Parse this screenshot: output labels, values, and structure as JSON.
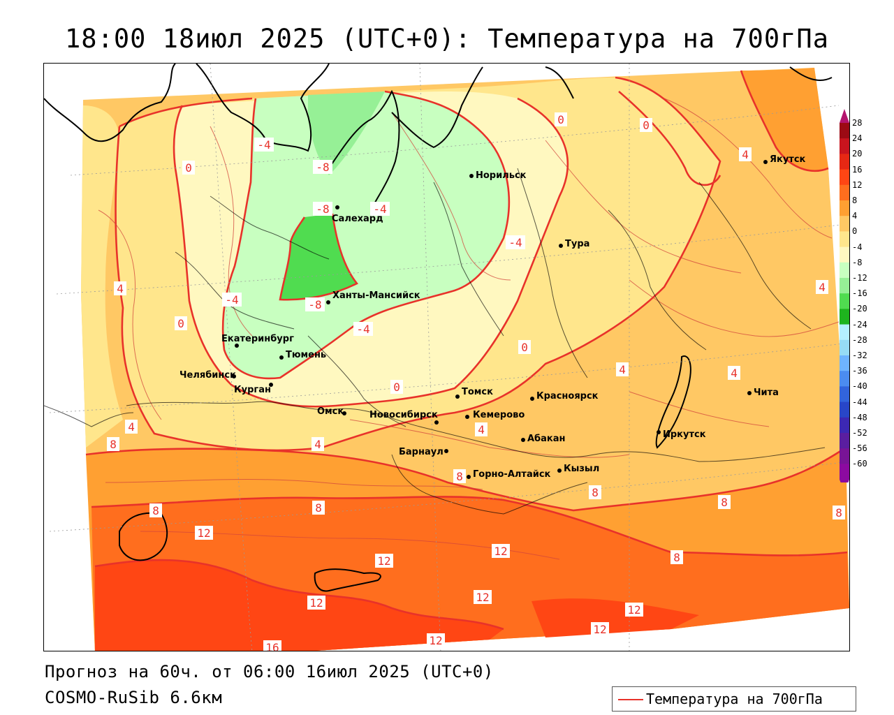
{
  "header": {
    "title": "18:00 18июл 2025 (UTC+0): Температура на 700гПа"
  },
  "footer": {
    "forecast": "Прогноз на 60ч. от 06:00 16июл 2025 (UTC+0)",
    "model": "COSMO-RuSib 6.6км"
  },
  "legend": {
    "label": "Температура на 700гПа",
    "line_color": "#e8322a"
  },
  "scale": {
    "labels": [
      "28",
      "24",
      "20",
      "16",
      "12",
      "8",
      "4",
      "0",
      "-4",
      "-8",
      "-12",
      "-16",
      "-20",
      "-24",
      "-28",
      "-32",
      "-36",
      "-40",
      "-44",
      "-48",
      "-52",
      "-56",
      "-60"
    ],
    "colors": [
      "#9c0a14",
      "#c8141e",
      "#e62814",
      "#ff4614",
      "#ff6e1e",
      "#ffa032",
      "#ffc864",
      "#ffe68c",
      "#fff8c0",
      "#c8ffc0",
      "#96f096",
      "#50dc50",
      "#1eb41e",
      "#b4f0ff",
      "#96dcf5",
      "#6eb4ff",
      "#4b8cf0",
      "#3264dc",
      "#2846c8",
      "#3c28b4",
      "#5a1ea0",
      "#781496",
      "#8c0aa0"
    ]
  },
  "cities": [
    {
      "name": "Норильск"
    },
    {
      "name": "Салехард"
    },
    {
      "name": "Тура"
    },
    {
      "name": "Якутск"
    },
    {
      "name": "Ханты-Мансийск"
    },
    {
      "name": "Екатеринбург"
    },
    {
      "name": "Тюмень"
    },
    {
      "name": "Челябинск"
    },
    {
      "name": "Курган"
    },
    {
      "name": "Омск"
    },
    {
      "name": "Новосибирск"
    },
    {
      "name": "Томск"
    },
    {
      "name": "Кемерово"
    },
    {
      "name": "Красноярск"
    },
    {
      "name": "Барнаул"
    },
    {
      "name": "Абакан"
    },
    {
      "name": "Горно-Алтайск"
    },
    {
      "name": "Кызыл"
    },
    {
      "name": "Иркутск"
    },
    {
      "name": "Чита"
    }
  ],
  "contour_labels": [
    {
      "value": "0"
    },
    {
      "value": "0"
    },
    {
      "value": "-4"
    },
    {
      "value": "0"
    },
    {
      "value": "-8"
    },
    {
      "value": "-8"
    },
    {
      "value": "-4"
    },
    {
      "value": "4"
    },
    {
      "value": "-4"
    },
    {
      "value": "-4"
    },
    {
      "value": "-8"
    },
    {
      "value": "-4"
    },
    {
      "value": "4"
    },
    {
      "value": "0"
    },
    {
      "value": "0"
    },
    {
      "value": "0"
    },
    {
      "value": "4"
    },
    {
      "value": "4"
    },
    {
      "value": "4"
    },
    {
      "value": "4"
    },
    {
      "value": "8"
    },
    {
      "value": "4"
    },
    {
      "value": "4"
    },
    {
      "value": "8"
    },
    {
      "value": "8"
    },
    {
      "value": "8"
    },
    {
      "value": "8"
    },
    {
      "value": "8"
    },
    {
      "value": "8"
    },
    {
      "value": "12"
    },
    {
      "value": "12"
    },
    {
      "value": "12"
    },
    {
      "value": "12"
    },
    {
      "value": "12"
    },
    {
      "value": "12"
    },
    {
      "value": "12"
    },
    {
      "value": "12"
    },
    {
      "value": "16"
    },
    {
      "value": "8"
    }
  ]
}
